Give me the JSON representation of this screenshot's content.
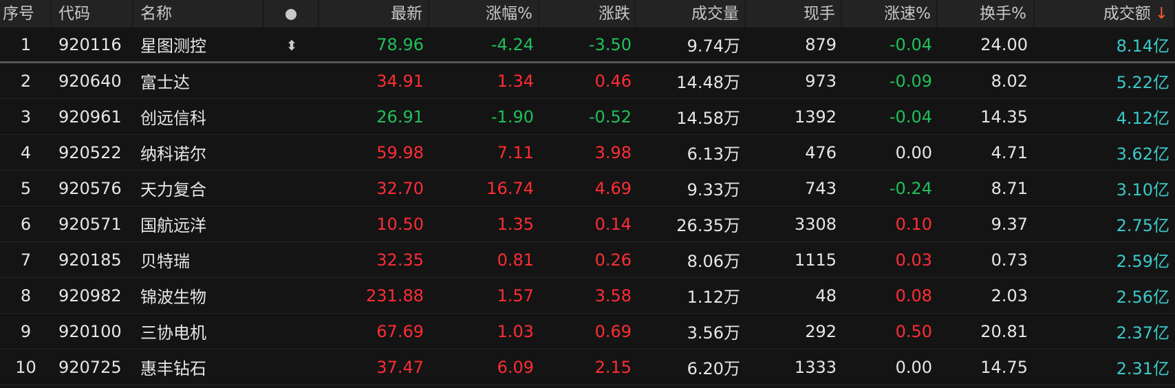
{
  "header": {
    "index": "序号",
    "code": "代码",
    "name": "名称",
    "latest": "最新",
    "pct": "涨幅%",
    "change": "涨跌",
    "volume": "成交量",
    "current": "现手",
    "speed": "涨速%",
    "turnover": "换手%",
    "amount": "成交额",
    "sort_arrow": "↓"
  },
  "colors": {
    "up": "#ff2d34",
    "down": "#1fc05a",
    "amount": "#3cc8c8",
    "header_bg": "#232323",
    "row_bg": "#141414"
  },
  "rows": [
    {
      "i": "1",
      "code": "920116",
      "name": "星图测控",
      "latest": "78.96",
      "pct": "-4.24",
      "chg": "-3.50",
      "vol": "9.74万",
      "cur": "879",
      "spd": "-0.04",
      "to": "24.00",
      "amt": "8.14亿",
      "dir": "down",
      "sdir": "down"
    },
    {
      "i": "2",
      "code": "920640",
      "name": "富士达",
      "latest": "34.91",
      "pct": "1.34",
      "chg": "0.46",
      "vol": "14.48万",
      "cur": "973",
      "spd": "-0.09",
      "to": "8.02",
      "amt": "5.22亿",
      "dir": "up",
      "sdir": "down"
    },
    {
      "i": "3",
      "code": "920961",
      "name": "创远信科",
      "latest": "26.91",
      "pct": "-1.90",
      "chg": "-0.52",
      "vol": "14.58万",
      "cur": "1392",
      "spd": "-0.04",
      "to": "14.35",
      "amt": "4.12亿",
      "dir": "down",
      "sdir": "down"
    },
    {
      "i": "4",
      "code": "920522",
      "name": "纳科诺尔",
      "latest": "59.98",
      "pct": "7.11",
      "chg": "3.98",
      "vol": "6.13万",
      "cur": "476",
      "spd": "0.00",
      "to": "4.71",
      "amt": "3.62亿",
      "dir": "up",
      "sdir": "flat"
    },
    {
      "i": "5",
      "code": "920576",
      "name": "天力复合",
      "latest": "32.70",
      "pct": "16.74",
      "chg": "4.69",
      "vol": "9.33万",
      "cur": "743",
      "spd": "-0.24",
      "to": "8.71",
      "amt": "3.10亿",
      "dir": "up",
      "sdir": "down"
    },
    {
      "i": "6",
      "code": "920571",
      "name": "国航远洋",
      "latest": "10.50",
      "pct": "1.35",
      "chg": "0.14",
      "vol": "26.35万",
      "cur": "3308",
      "spd": "0.10",
      "to": "9.37",
      "amt": "2.75亿",
      "dir": "up",
      "sdir": "up"
    },
    {
      "i": "7",
      "code": "920185",
      "name": "贝特瑞",
      "latest": "32.35",
      "pct": "0.81",
      "chg": "0.26",
      "vol": "8.06万",
      "cur": "1115",
      "spd": "0.03",
      "to": "0.73",
      "amt": "2.59亿",
      "dir": "up",
      "sdir": "up"
    },
    {
      "i": "8",
      "code": "920982",
      "name": "锦波生物",
      "latest": "231.88",
      "pct": "1.57",
      "chg": "3.58",
      "vol": "1.12万",
      "cur": "48",
      "spd": "0.08",
      "to": "2.03",
      "amt": "2.56亿",
      "dir": "up",
      "sdir": "up"
    },
    {
      "i": "9",
      "code": "920100",
      "name": "三协电机",
      "latest": "67.69",
      "pct": "1.03",
      "chg": "0.69",
      "vol": "3.56万",
      "cur": "292",
      "spd": "0.50",
      "to": "20.81",
      "amt": "2.37亿",
      "dir": "up",
      "sdir": "up"
    },
    {
      "i": "10",
      "code": "920725",
      "name": "惠丰钻石",
      "latest": "37.47",
      "pct": "6.09",
      "chg": "2.15",
      "vol": "6.20万",
      "cur": "1333",
      "spd": "0.00",
      "to": "14.75",
      "amt": "2.31亿",
      "dir": "up",
      "sdir": "flat"
    }
  ]
}
